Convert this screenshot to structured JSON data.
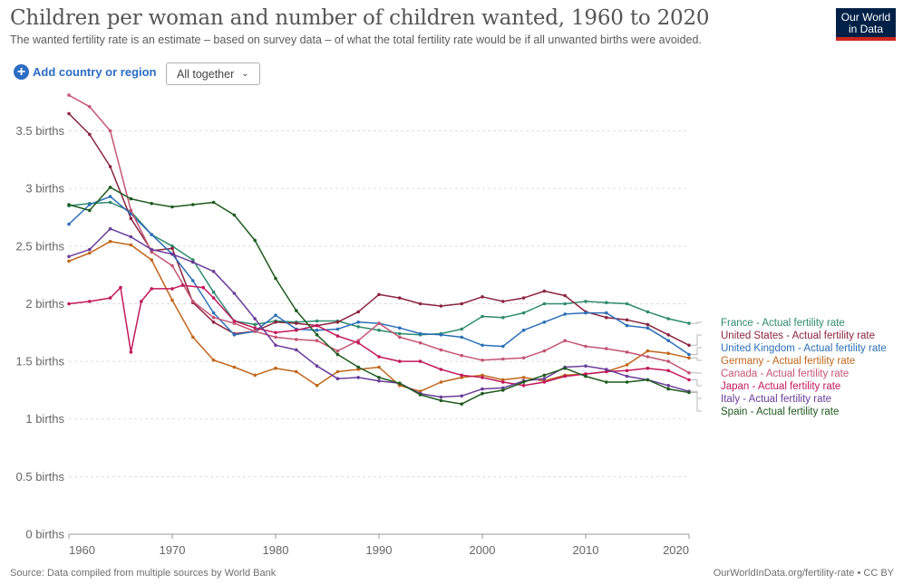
{
  "header": {
    "title": "Children per woman and number of children wanted, 1960 to 2020",
    "subtitle": "The wanted fertility rate is an estimate – based on survey data – of what the total fertility rate would be if all unwanted births were avoided.",
    "logo_line1": "Our World",
    "logo_line2": "in Data"
  },
  "controls": {
    "add_label": "Add country or region",
    "dropdown_value": "All together"
  },
  "footer": {
    "source": "Source: Data compiled from multiple sources by World Bank",
    "url": "OurWorldInData.org/fertility-rate • CC BY"
  },
  "chart_data": {
    "type": "line",
    "x_ticks": [
      1960,
      1970,
      1980,
      1990,
      2000,
      2010,
      2020
    ],
    "y_ticks": [
      {
        "value": 0,
        "label": "0 births"
      },
      {
        "value": 0.5,
        "label": "0.5 births"
      },
      {
        "value": 1,
        "label": "1 births"
      },
      {
        "value": 1.5,
        "label": "1.5 births"
      },
      {
        "value": 2,
        "label": "2 births"
      },
      {
        "value": 2.5,
        "label": "2.5 births"
      },
      {
        "value": 3,
        "label": "3 births"
      },
      {
        "value": 3.5,
        "label": "3.5 births"
      }
    ],
    "xlim": [
      1960,
      2020
    ],
    "ylim": [
      0,
      3.85
    ],
    "grid": "horizontal dashed",
    "legend_placement": "right",
    "series": [
      {
        "name": "France - Actual fertility rate",
        "color": "#2e8b6e",
        "points": [
          [
            1960,
            2.85
          ],
          [
            1962,
            2.87
          ],
          [
            1964,
            2.88
          ],
          [
            1966,
            2.8
          ],
          [
            1968,
            2.6
          ],
          [
            1970,
            2.5
          ],
          [
            1972,
            2.38
          ],
          [
            1974,
            2.1
          ],
          [
            1976,
            1.85
          ],
          [
            1978,
            1.82
          ],
          [
            1980,
            1.85
          ],
          [
            1982,
            1.84
          ],
          [
            1984,
            1.85
          ],
          [
            1986,
            1.85
          ],
          [
            1988,
            1.8
          ],
          [
            1990,
            1.77
          ],
          [
            1992,
            1.74
          ],
          [
            1994,
            1.73
          ],
          [
            1996,
            1.74
          ],
          [
            1998,
            1.78
          ],
          [
            2000,
            1.89
          ],
          [
            2002,
            1.88
          ],
          [
            2004,
            1.92
          ],
          [
            2006,
            2.0
          ],
          [
            2008,
            2.0
          ],
          [
            2010,
            2.02
          ],
          [
            2012,
            2.01
          ],
          [
            2014,
            2.0
          ],
          [
            2016,
            1.93
          ],
          [
            2018,
            1.87
          ],
          [
            2020,
            1.83
          ]
        ]
      },
      {
        "name": "United States - Actual fertility rate",
        "color": "#8b2540",
        "points": [
          [
            1960,
            3.65
          ],
          [
            1962,
            3.47
          ],
          [
            1964,
            3.19
          ],
          [
            1966,
            2.74
          ],
          [
            1968,
            2.46
          ],
          [
            1970,
            2.48
          ],
          [
            1972,
            2.01
          ],
          [
            1974,
            1.84
          ],
          [
            1976,
            1.74
          ],
          [
            1978,
            1.76
          ],
          [
            1980,
            1.84
          ],
          [
            1982,
            1.83
          ],
          [
            1984,
            1.81
          ],
          [
            1986,
            1.84
          ],
          [
            1988,
            1.93
          ],
          [
            1990,
            2.08
          ],
          [
            1992,
            2.05
          ],
          [
            1994,
            2.0
          ],
          [
            1996,
            1.98
          ],
          [
            1998,
            2.0
          ],
          [
            2000,
            2.06
          ],
          [
            2002,
            2.02
          ],
          [
            2004,
            2.05
          ],
          [
            2006,
            2.11
          ],
          [
            2008,
            2.07
          ],
          [
            2010,
            1.93
          ],
          [
            2012,
            1.88
          ],
          [
            2014,
            1.86
          ],
          [
            2016,
            1.82
          ],
          [
            2018,
            1.73
          ],
          [
            2020,
            1.64
          ]
        ]
      },
      {
        "name": "United Kingdom - Actual fertility rate",
        "color": "#2c6fb7",
        "points": [
          [
            1960,
            2.69
          ],
          [
            1962,
            2.86
          ],
          [
            1964,
            2.93
          ],
          [
            1966,
            2.78
          ],
          [
            1968,
            2.6
          ],
          [
            1970,
            2.43
          ],
          [
            1972,
            2.2
          ],
          [
            1974,
            1.92
          ],
          [
            1976,
            1.73
          ],
          [
            1978,
            1.76
          ],
          [
            1980,
            1.9
          ],
          [
            1982,
            1.78
          ],
          [
            1984,
            1.77
          ],
          [
            1986,
            1.78
          ],
          [
            1988,
            1.84
          ],
          [
            1990,
            1.83
          ],
          [
            1992,
            1.79
          ],
          [
            1994,
            1.74
          ],
          [
            1996,
            1.73
          ],
          [
            1998,
            1.71
          ],
          [
            2000,
            1.64
          ],
          [
            2002,
            1.63
          ],
          [
            2004,
            1.77
          ],
          [
            2006,
            1.84
          ],
          [
            2008,
            1.91
          ],
          [
            2010,
            1.92
          ],
          [
            2012,
            1.92
          ],
          [
            2014,
            1.81
          ],
          [
            2016,
            1.79
          ],
          [
            2018,
            1.68
          ],
          [
            2020,
            1.56
          ]
        ]
      },
      {
        "name": "Germany - Actual fertility rate",
        "color": "#c0661b",
        "points": [
          [
            1960,
            2.37
          ],
          [
            1962,
            2.44
          ],
          [
            1964,
            2.54
          ],
          [
            1966,
            2.51
          ],
          [
            1968,
            2.38
          ],
          [
            1970,
            2.03
          ],
          [
            1972,
            1.71
          ],
          [
            1974,
            1.51
          ],
          [
            1976,
            1.45
          ],
          [
            1978,
            1.38
          ],
          [
            1980,
            1.44
          ],
          [
            1982,
            1.41
          ],
          [
            1984,
            1.29
          ],
          [
            1986,
            1.41
          ],
          [
            1988,
            1.43
          ],
          [
            1990,
            1.45
          ],
          [
            1992,
            1.29
          ],
          [
            1994,
            1.24
          ],
          [
            1996,
            1.32
          ],
          [
            1998,
            1.36
          ],
          [
            2000,
            1.38
          ],
          [
            2002,
            1.34
          ],
          [
            2004,
            1.36
          ],
          [
            2006,
            1.33
          ],
          [
            2008,
            1.38
          ],
          [
            2010,
            1.39
          ],
          [
            2012,
            1.41
          ],
          [
            2014,
            1.47
          ],
          [
            2016,
            1.59
          ],
          [
            2018,
            1.57
          ],
          [
            2020,
            1.53
          ]
        ]
      },
      {
        "name": "Canada - Actual fertility rate",
        "color": "#c45573",
        "points": [
          [
            1960,
            3.81
          ],
          [
            1962,
            3.71
          ],
          [
            1964,
            3.5
          ],
          [
            1966,
            2.81
          ],
          [
            1968,
            2.45
          ],
          [
            1970,
            2.33
          ],
          [
            1972,
            2.02
          ],
          [
            1974,
            1.88
          ],
          [
            1976,
            1.83
          ],
          [
            1978,
            1.76
          ],
          [
            1980,
            1.71
          ],
          [
            1982,
            1.69
          ],
          [
            1984,
            1.68
          ],
          [
            1986,
            1.59
          ],
          [
            1988,
            1.68
          ],
          [
            1990,
            1.83
          ],
          [
            1992,
            1.71
          ],
          [
            1994,
            1.66
          ],
          [
            1996,
            1.6
          ],
          [
            1998,
            1.55
          ],
          [
            2000,
            1.51
          ],
          [
            2002,
            1.52
          ],
          [
            2004,
            1.53
          ],
          [
            2006,
            1.59
          ],
          [
            2008,
            1.68
          ],
          [
            2010,
            1.63
          ],
          [
            2012,
            1.61
          ],
          [
            2014,
            1.58
          ],
          [
            2016,
            1.54
          ],
          [
            2018,
            1.5
          ],
          [
            2020,
            1.4
          ]
        ]
      },
      {
        "name": "Japan - Actual fertility rate",
        "color": "#c2185b",
        "points": [
          [
            1960,
            2.0
          ],
          [
            1962,
            2.02
          ],
          [
            1964,
            2.05
          ],
          [
            1965,
            2.14
          ],
          [
            1966,
            1.58
          ],
          [
            1967,
            2.02
          ],
          [
            1968,
            2.13
          ],
          [
            1970,
            2.13
          ],
          [
            1971,
            2.16
          ],
          [
            1973,
            2.14
          ],
          [
            1974,
            2.05
          ],
          [
            1976,
            1.85
          ],
          [
            1978,
            1.79
          ],
          [
            1980,
            1.75
          ],
          [
            1982,
            1.77
          ],
          [
            1984,
            1.81
          ],
          [
            1986,
            1.72
          ],
          [
            1988,
            1.66
          ],
          [
            1990,
            1.54
          ],
          [
            1992,
            1.5
          ],
          [
            1994,
            1.5
          ],
          [
            1996,
            1.43
          ],
          [
            1998,
            1.38
          ],
          [
            2000,
            1.36
          ],
          [
            2002,
            1.32
          ],
          [
            2004,
            1.29
          ],
          [
            2006,
            1.32
          ],
          [
            2008,
            1.37
          ],
          [
            2010,
            1.39
          ],
          [
            2012,
            1.41
          ],
          [
            2014,
            1.42
          ],
          [
            2016,
            1.44
          ],
          [
            2018,
            1.42
          ],
          [
            2020,
            1.34
          ]
        ]
      },
      {
        "name": "Italy - Actual fertility rate",
        "color": "#6a3d9a",
        "points": [
          [
            1960,
            2.41
          ],
          [
            1962,
            2.47
          ],
          [
            1964,
            2.65
          ],
          [
            1966,
            2.58
          ],
          [
            1968,
            2.47
          ],
          [
            1970,
            2.43
          ],
          [
            1972,
            2.36
          ],
          [
            1974,
            2.28
          ],
          [
            1976,
            2.09
          ],
          [
            1978,
            1.87
          ],
          [
            1980,
            1.64
          ],
          [
            1982,
            1.6
          ],
          [
            1984,
            1.46
          ],
          [
            1986,
            1.35
          ],
          [
            1988,
            1.36
          ],
          [
            1990,
            1.33
          ],
          [
            1992,
            1.31
          ],
          [
            1994,
            1.22
          ],
          [
            1996,
            1.19
          ],
          [
            1998,
            1.2
          ],
          [
            2000,
            1.26
          ],
          [
            2002,
            1.27
          ],
          [
            2004,
            1.33
          ],
          [
            2006,
            1.35
          ],
          [
            2008,
            1.45
          ],
          [
            2010,
            1.46
          ],
          [
            2012,
            1.43
          ],
          [
            2014,
            1.37
          ],
          [
            2016,
            1.34
          ],
          [
            2018,
            1.29
          ],
          [
            2020,
            1.24
          ]
        ]
      },
      {
        "name": "Spain - Actual fertility rate",
        "color": "#1e5a1e",
        "points": [
          [
            1960,
            2.86
          ],
          [
            1962,
            2.81
          ],
          [
            1964,
            3.01
          ],
          [
            1966,
            2.91
          ],
          [
            1968,
            2.87
          ],
          [
            1970,
            2.84
          ],
          [
            1972,
            2.86
          ],
          [
            1974,
            2.88
          ],
          [
            1976,
            2.77
          ],
          [
            1978,
            2.55
          ],
          [
            1980,
            2.22
          ],
          [
            1982,
            1.94
          ],
          [
            1984,
            1.73
          ],
          [
            1986,
            1.56
          ],
          [
            1988,
            1.45
          ],
          [
            1990,
            1.36
          ],
          [
            1992,
            1.31
          ],
          [
            1994,
            1.21
          ],
          [
            1996,
            1.16
          ],
          [
            1998,
            1.13
          ],
          [
            2000,
            1.22
          ],
          [
            2002,
            1.25
          ],
          [
            2004,
            1.32
          ],
          [
            2006,
            1.38
          ],
          [
            2008,
            1.44
          ],
          [
            2010,
            1.37
          ],
          [
            2012,
            1.32
          ],
          [
            2014,
            1.32
          ],
          [
            2016,
            1.34
          ],
          [
            2018,
            1.26
          ],
          [
            2020,
            1.23
          ]
        ]
      }
    ]
  }
}
